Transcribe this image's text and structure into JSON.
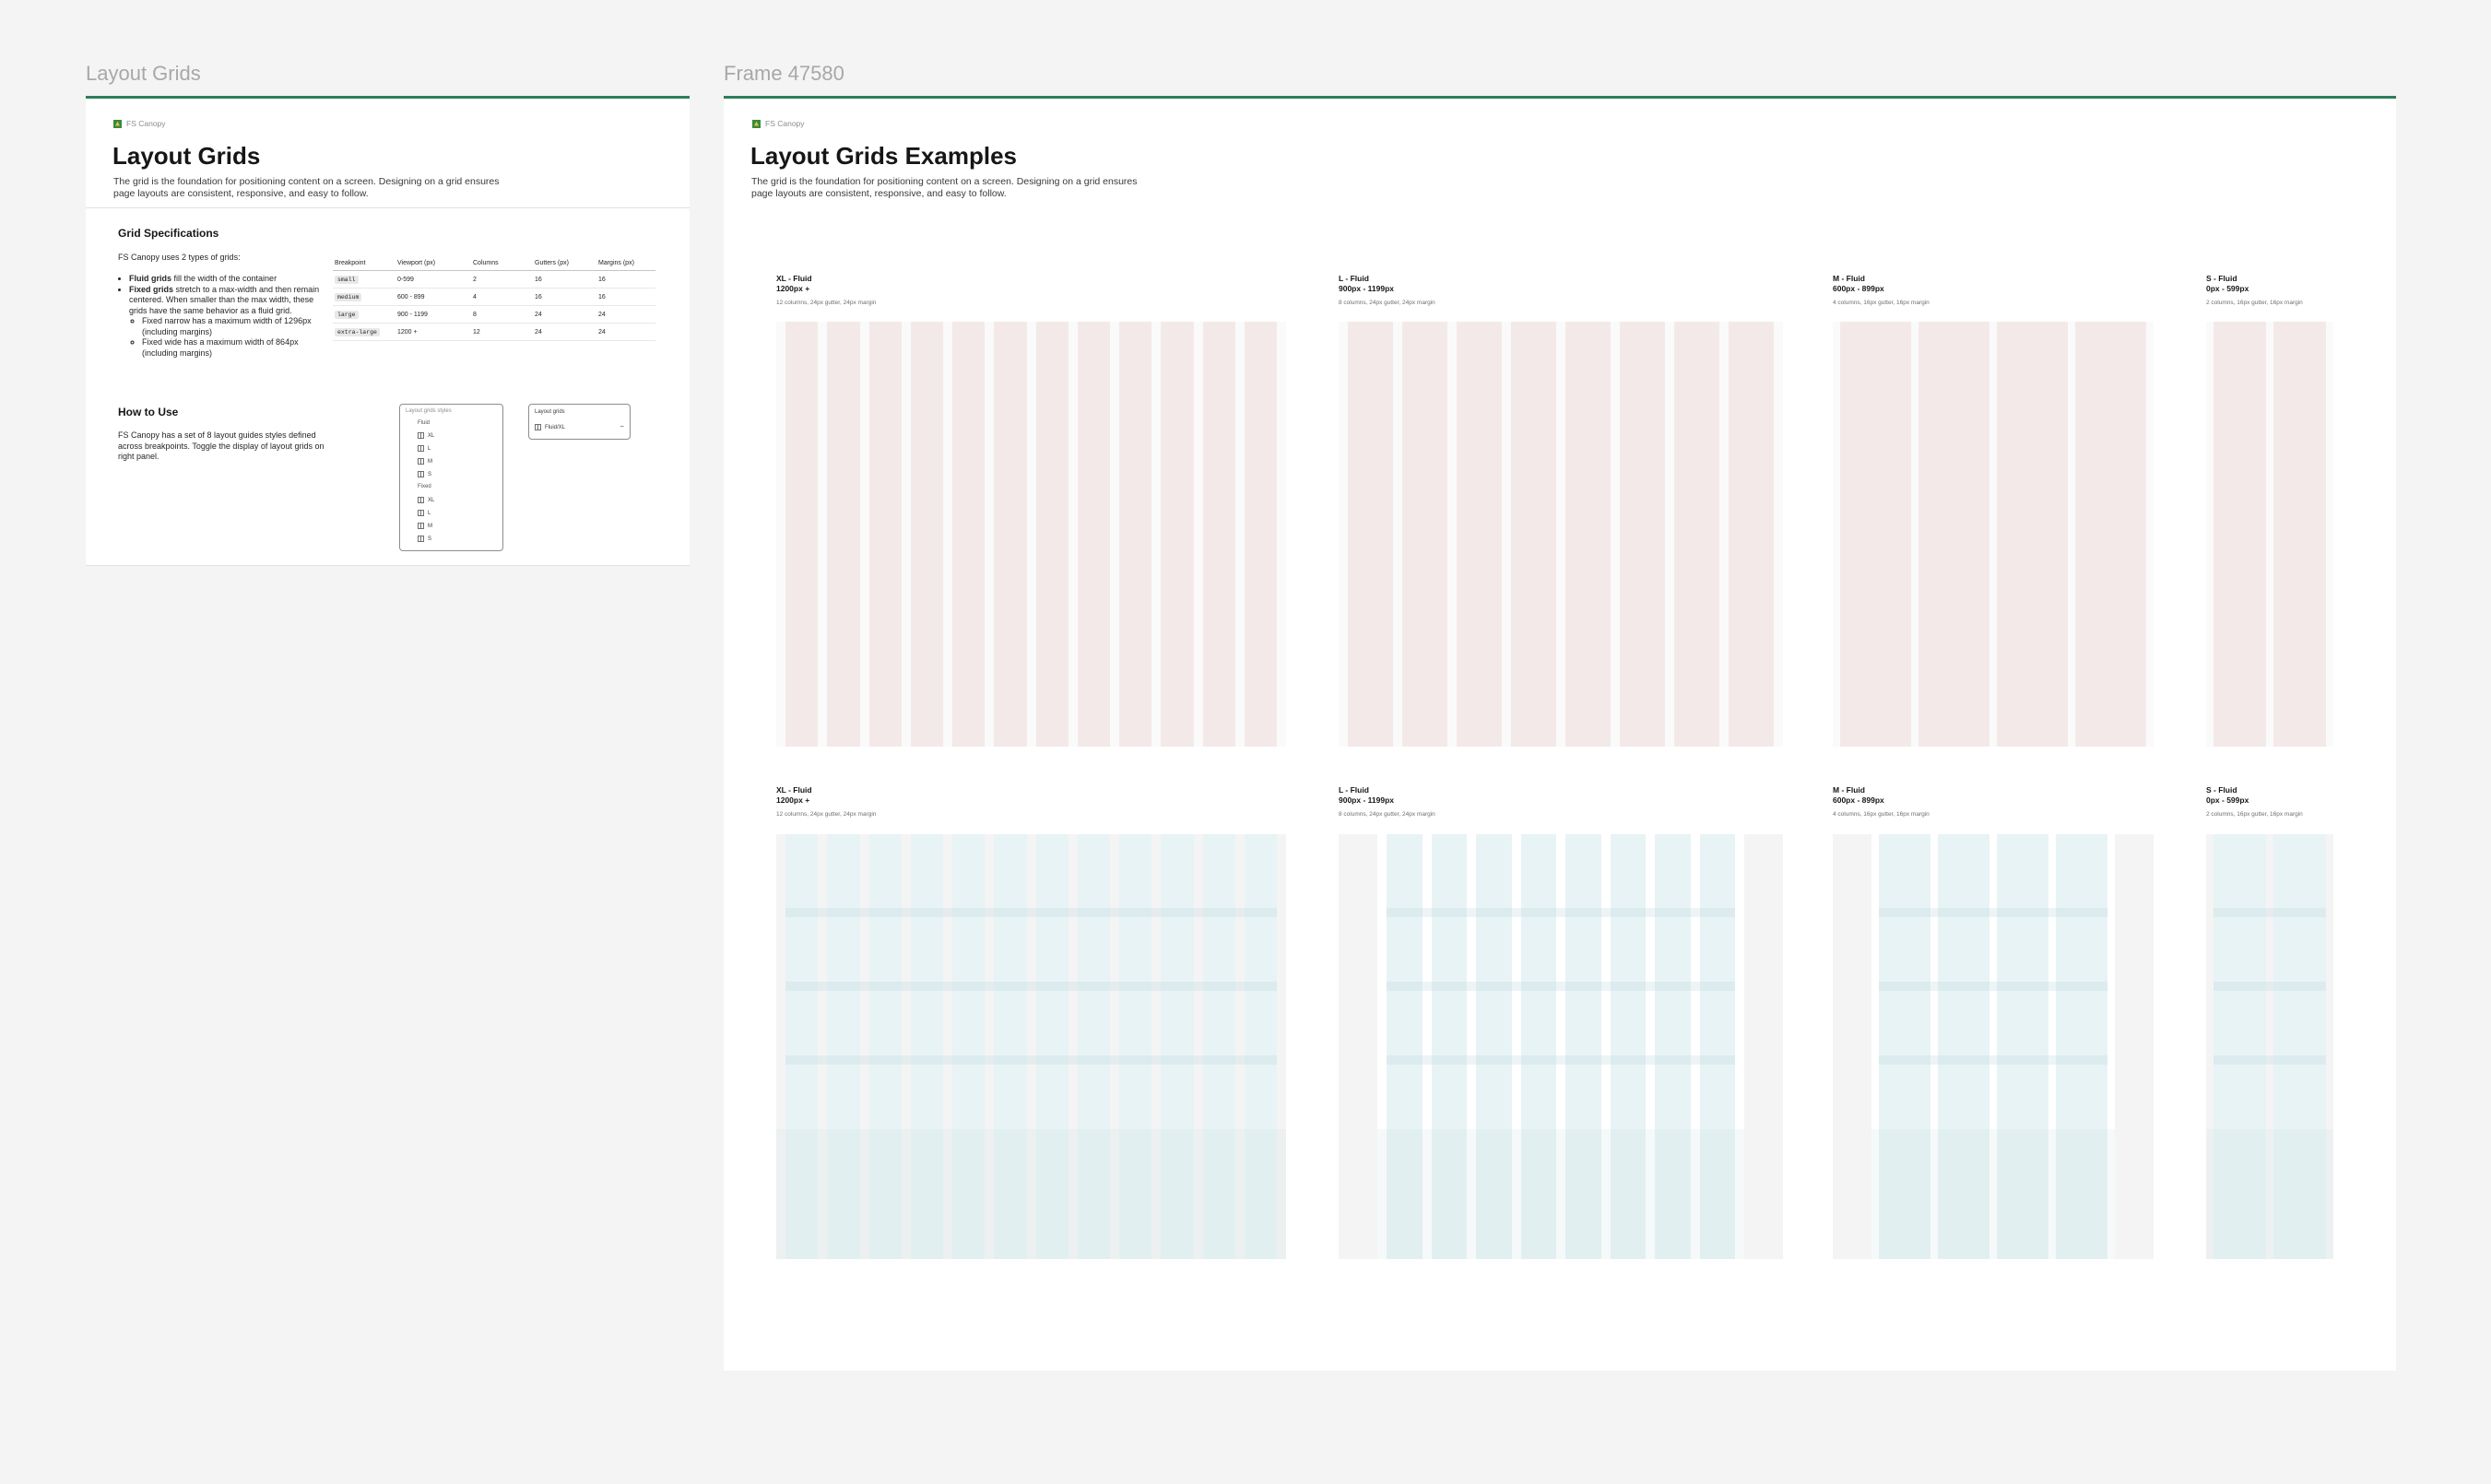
{
  "frames": {
    "left_label": "Layout Grids",
    "right_label": "Frame 47580"
  },
  "colors": {
    "accent_line": "#2e7d5b",
    "pink_column": "#f4e9e9",
    "blue_column": "#e8f3f5",
    "canvas": "#f4f4f4"
  },
  "left": {
    "brand": "FS Canopy",
    "title": "Layout Grids",
    "description_line1": "The grid is the foundation for positioning content on a screen. Designing on a grid ensures",
    "description_line2": "page layouts are consistent, responsive, and easy to follow.",
    "spec": {
      "title": "Grid Specifications",
      "intro": "FS Canopy uses 2 types of grids:",
      "fluid_bold": "Fluid grids",
      "fluid_rest": " fill the width of the container",
      "fixed_bold": "Fixed grids",
      "fixed_rest": " stretch to a max-width and then remain centered. When smaller than the max width, these grids have the same behavior as a fluid grid.",
      "narrow": "Fixed narrow has a maximum width of 1296px (including margins)",
      "wide": "Fixed wide has a maximum width of 864px (including margins)"
    },
    "table": {
      "headers": [
        "Breakpoint",
        "Viewport (px)",
        "Columns",
        "Gutters (px)",
        "Margins (px)"
      ],
      "rows": [
        {
          "bp": "small",
          "viewport": "0-599",
          "columns": "2",
          "gutters": "16",
          "margins": "16"
        },
        {
          "bp": "medium",
          "viewport": "600 - 899",
          "columns": "4",
          "gutters": "16",
          "margins": "16"
        },
        {
          "bp": "large",
          "viewport": "900 - 1199",
          "columns": "8",
          "gutters": "24",
          "margins": "24"
        },
        {
          "bp": "extra-large",
          "viewport": "1200 +",
          "columns": "12",
          "gutters": "24",
          "margins": "24"
        }
      ]
    },
    "how": {
      "title": "How to Use",
      "text": "FS Canopy has a set of 8 layout guides styles defined across breakpoints. Toggle the display of layout grids on right panel."
    },
    "styles_panel": {
      "title": "Layout grids styles",
      "fluid_label": "Fluid",
      "fixed_label": "Fixed",
      "items": [
        "XL",
        "L",
        "M",
        "S"
      ]
    },
    "layout_panel": {
      "title": "Layout grids",
      "value": "Fluid/XL",
      "minus": "−"
    }
  },
  "right": {
    "brand": "FS Canopy",
    "title": "Layout Grids Examples",
    "description_line1": "The grid is the foundation for positioning content on a screen. Designing on a grid ensures",
    "description_line2": "page layouts are consistent, responsive, and easy to follow.",
    "row1": [
      {
        "name": "XL - Fluid",
        "range": "1200px +",
        "spec": "12 columns, 24px gutter, 24px margin",
        "columns": 12,
        "style": "fluid"
      },
      {
        "name": "L - Fluid",
        "range": "900px - 1199px",
        "spec": "8 columns, 24px gutter, 24px margin",
        "columns": 8,
        "style": "fluid"
      },
      {
        "name": "M - Fluid",
        "range": "600px - 899px",
        "spec": "4 columns, 16px gutter, 16px margin",
        "columns": 4,
        "style": "fluid"
      },
      {
        "name": "S - Fluid",
        "range": "0px - 599px",
        "spec": "2 columns, 16px gutter, 16px margin",
        "columns": 2,
        "style": "fluid"
      }
    ],
    "row2": [
      {
        "name": "XL - Fluid",
        "range": "1200px +",
        "spec": "12 columns, 24px gutter, 24px margin",
        "columns": 12,
        "style": "fluid"
      },
      {
        "name": "L - Fluid",
        "range": "900px - 1199px",
        "spec": "8 columns, 24px gutter, 24px margin",
        "columns": 8,
        "style": "fixed"
      },
      {
        "name": "M - Fluid",
        "range": "600px - 899px",
        "spec": "4 columns, 16px gutter, 16px margin",
        "columns": 4,
        "style": "fixed"
      },
      {
        "name": "S - Fluid",
        "range": "0px - 599px",
        "spec": "2 columns, 16px gutter, 16px margin",
        "columns": 2,
        "style": "fluid"
      }
    ]
  }
}
